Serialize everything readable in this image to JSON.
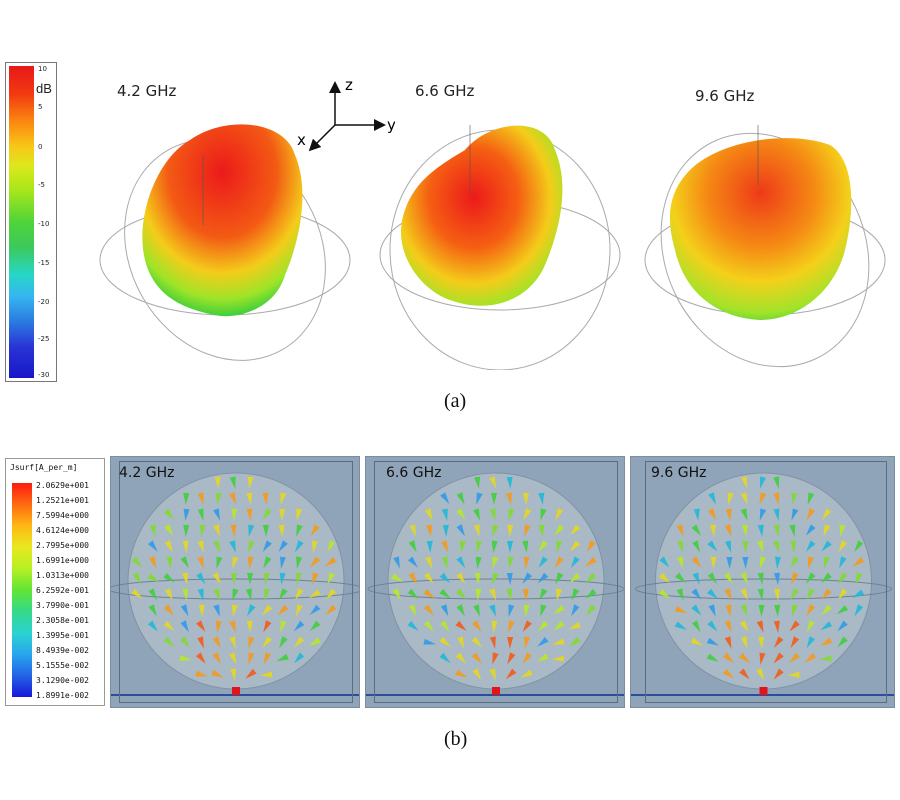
{
  "panel_a": {
    "colorbar": {
      "unit": "dB",
      "ticks": [
        "10",
        "5",
        "0",
        "-5",
        "-10",
        "-15",
        "-20",
        "-25",
        "-30"
      ]
    },
    "axes": {
      "z": "z",
      "y": "y",
      "x": "x"
    },
    "plots": [
      {
        "freq": "4.2 GHz"
      },
      {
        "freq": "6.6 GHz"
      },
      {
        "freq": "9.6 GHz"
      }
    ],
    "caption": "(a)"
  },
  "panel_b": {
    "legend": {
      "title": "Jsurf[A_per_m]",
      "values": [
        "2.0629e+001",
        "1.2521e+001",
        "7.5994e+000",
        "4.6124e+000",
        "2.7995e+000",
        "1.6991e+000",
        "1.0313e+000",
        "6.2592e-001",
        "3.7990e-001",
        "2.3058e-001",
        "1.3995e-001",
        "8.4939e-002",
        "5.1555e-002",
        "3.1290e-002",
        "1.8991e-002"
      ]
    },
    "plots": [
      {
        "freq": "4.2 GHz"
      },
      {
        "freq": "6.6 GHz"
      },
      {
        "freq": "9.6 GHz"
      }
    ],
    "caption": "(b)"
  },
  "colors": {
    "pattern_hot": "#e8181b",
    "pattern_warm": "#f7d21a",
    "pattern_cool": "#4fd43a",
    "panel_bg": "#8fa4b8"
  }
}
